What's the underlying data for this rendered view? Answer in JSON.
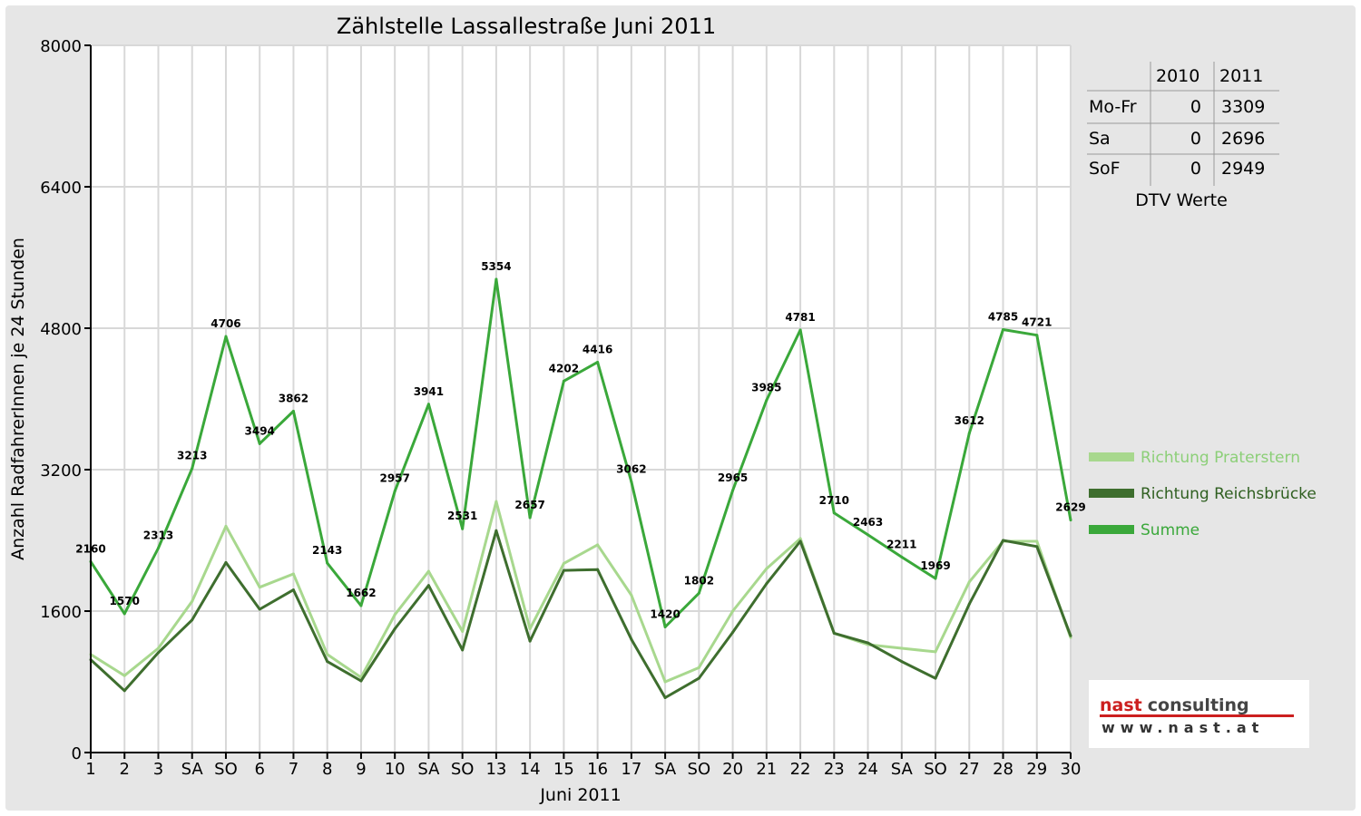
{
  "chart_data": {
    "type": "line",
    "title": "Zählstelle Lassallestraße Juni 2011",
    "xlabel": "Juni 2011",
    "ylabel": "Anzahl RadfahrerInnen je 24 Stunden",
    "ylim": [
      0,
      8000
    ],
    "yticks": [
      "0",
      "1600",
      "3200",
      "4800",
      "6400",
      "8000"
    ],
    "grid": true,
    "categories": [
      "1",
      "2",
      "3",
      "SA",
      "SO",
      "6",
      "7",
      "8",
      "9",
      "10",
      "SA",
      "SO",
      "13",
      "14",
      "15",
      "16",
      "17",
      "SA",
      "SO",
      "20",
      "21",
      "22",
      "23",
      "24",
      "SA",
      "SO",
      "27",
      "28",
      "29",
      "30"
    ],
    "highlight_categories": [
      1,
      4,
      11,
      12,
      18,
      22,
      25
    ],
    "series": [
      {
        "name": "Richtung Praterstern",
        "color": "#a8d88e",
        "values": [
          1110,
          870,
          1180,
          1710,
          2560,
          1870,
          2020,
          1110,
          850,
          1560,
          2050,
          1370,
          2840,
          1400,
          2140,
          2350,
          1780,
          800,
          960,
          1600,
          2080,
          2420,
          1350,
          1220,
          1180,
          1140,
          1930,
          2390,
          2390,
          1300
        ]
      },
      {
        "name": "Richtung Reichsbrücke",
        "color": "#3e6e2e",
        "values": [
          1050,
          700,
          1130,
          1500,
          2150,
          1620,
          1840,
          1030,
          810,
          1400,
          1890,
          1160,
          2510,
          1260,
          2060,
          2070,
          1280,
          620,
          840,
          1360,
          1910,
          2390,
          1350,
          1240,
          1030,
          840,
          1680,
          2400,
          2330,
          1320
        ]
      },
      {
        "name": "Summe",
        "color": "#3aa83a",
        "values": [
          2160,
          1570,
          2313,
          3213,
          4706,
          3494,
          3862,
          2143,
          1662,
          2957,
          3941,
          2531,
          5354,
          2657,
          4202,
          4416,
          3062,
          1420,
          1802,
          2965,
          3985,
          4781,
          2710,
          2463,
          2211,
          1969,
          3612,
          4785,
          4721,
          2629
        ]
      }
    ],
    "data_labels": [
      "2160",
      "1570",
      "2313",
      "3213",
      "4706",
      "3494",
      "3862",
      "2143",
      "1662",
      "2957",
      "3941",
      "2531",
      "5354",
      "2657",
      "4202",
      "4416",
      "3062",
      "1420",
      "1802",
      "2965",
      "3985",
      "4781",
      "2710",
      "2463",
      "2211",
      "1969",
      "3612",
      "4785",
      "4721",
      "2629"
    ],
    "legend_position": "right"
  },
  "dtv_table": {
    "headers": [
      "",
      "2010",
      "2011"
    ],
    "rows": [
      {
        "label": "Mo-Fr",
        "v2010": "0",
        "v2011": "3309"
      },
      {
        "label": "Sa",
        "v2010": "0",
        "v2011": "2696"
      },
      {
        "label": "SoF",
        "v2010": "0",
        "v2011": "2949"
      }
    ],
    "caption": "DTV Werte"
  },
  "logo": {
    "main_left": "nast",
    "main_right": "consulting",
    "sub": "www.nast.at",
    "accent": "#cc1f1f"
  },
  "colors": {
    "weekend": "#e00000",
    "grid": "#d8d8d8"
  }
}
